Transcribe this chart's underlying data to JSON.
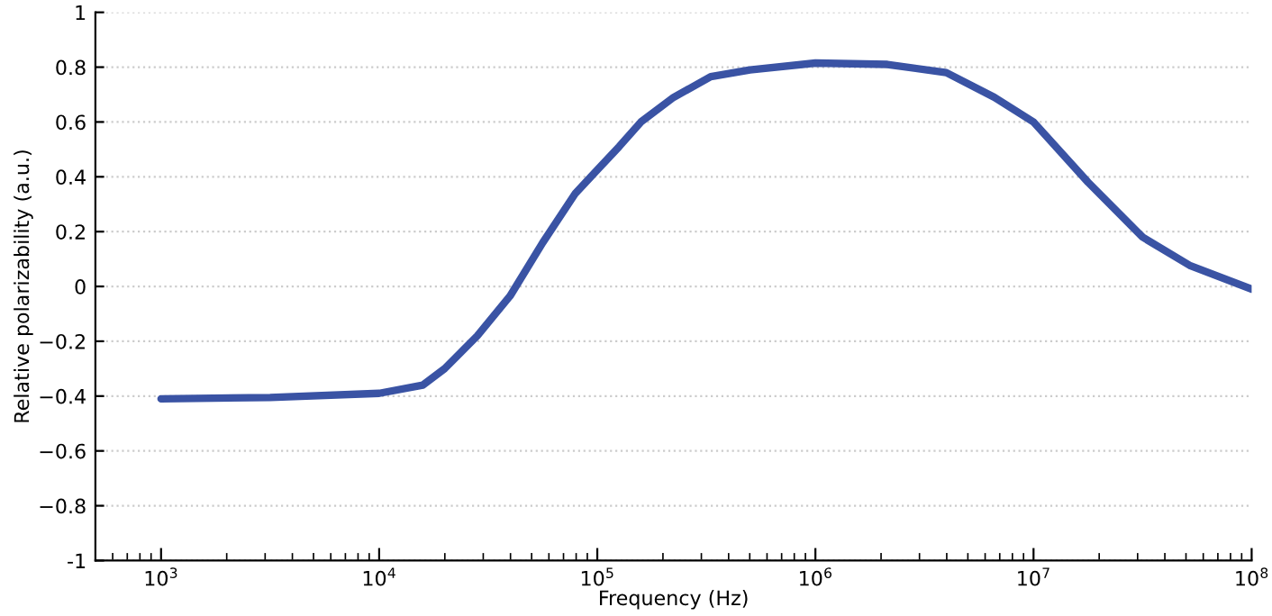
{
  "chart_data": {
    "type": "line",
    "xlabel": "Frequency (Hz)",
    "ylabel": "Relative polarizability (a.u.)",
    "log": "x",
    "grid": "y",
    "line_style": "solid",
    "marker": "none",
    "xlim": [
      500,
      100000000
    ],
    "xticks": [
      {
        "value": 1000,
        "label": "10$^{3}$"
      },
      {
        "value": 10000,
        "label": "10$^{4}$"
      },
      {
        "value": 100000,
        "label": "10$^{5}$"
      },
      {
        "value": 1000000,
        "label": "10$^{6}$"
      },
      {
        "value": 10000000,
        "label": "10$^{7}$"
      },
      {
        "value": 100000000,
        "label": "10$^{8}$"
      }
    ],
    "ylim": [
      -1,
      1
    ],
    "yticks": [
      -1,
      {
        "value": -0.8,
        "label": "−0.8"
      },
      {
        "value": -0.6,
        "label": "−0.6"
      },
      {
        "value": -0.4,
        "label": "−0.4"
      },
      {
        "value": -0.2,
        "label": "−0.2"
      },
      0,
      0.2,
      0.4,
      0.6,
      0.8,
      1
    ],
    "series": [
      {
        "color": "#3a53a4",
        "x": [
          1000,
          3162,
          10000,
          15850,
          19950,
          28180,
          39810,
          56230,
          79430,
          100000,
          125900,
          158500,
          223900,
          331100,
          501200,
          1000000,
          2138000,
          3981000,
          6607000,
          10000000,
          17780000,
          31620000,
          52480000,
          100000000
        ],
        "values": [
          -0.41,
          -0.405,
          -0.39,
          -0.36,
          -0.3,
          -0.18,
          -0.035,
          0.16,
          0.34,
          0.425,
          0.51,
          0.6,
          0.69,
          0.765,
          0.79,
          0.815,
          0.81,
          0.78,
          0.69,
          0.6,
          0.38,
          0.18,
          0.075,
          -0.01
        ]
      }
    ]
  }
}
